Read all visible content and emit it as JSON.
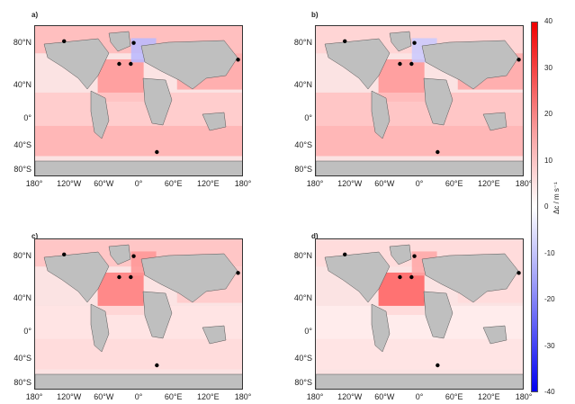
{
  "chart_data": {
    "type": "heatmap",
    "panels": [
      {
        "label": "a)",
        "zones": [
          {
            "region": "arctic",
            "value": 8
          },
          {
            "region": "north-atlantic",
            "value": 12
          },
          {
            "region": "north-pacific",
            "value": 10
          },
          {
            "region": "tropics",
            "value": 6
          },
          {
            "region": "southern-ocean",
            "value": 9
          },
          {
            "region": "nordic-seas",
            "value": -8
          }
        ]
      },
      {
        "label": "b)",
        "zones": [
          {
            "region": "arctic",
            "value": 5
          },
          {
            "region": "north-atlantic",
            "value": 12
          },
          {
            "region": "north-pacific",
            "value": 10
          },
          {
            "region": "tropics",
            "value": 7
          },
          {
            "region": "southern-ocean",
            "value": 9
          },
          {
            "region": "nordic-seas",
            "value": -6
          }
        ]
      },
      {
        "label": "c)",
        "zones": [
          {
            "region": "arctic",
            "value": 7
          },
          {
            "region": "north-atlantic",
            "value": 15
          },
          {
            "region": "north-pacific",
            "value": 6
          },
          {
            "region": "tropics",
            "value": 3
          },
          {
            "region": "southern-ocean",
            "value": 4
          },
          {
            "region": "nordic-seas",
            "value": 12
          }
        ]
      },
      {
        "label": "d)",
        "zones": [
          {
            "region": "arctic",
            "value": 4
          },
          {
            "region": "north-atlantic",
            "value": 18
          },
          {
            "region": "north-pacific",
            "value": 4
          },
          {
            "region": "tropics",
            "value": 2
          },
          {
            "region": "southern-ocean",
            "value": 3
          },
          {
            "region": "nordic-seas",
            "value": 10
          }
        ]
      }
    ],
    "stations": [
      {
        "lon": -130,
        "lat": 72
      },
      {
        "lon": -10,
        "lat": 70
      },
      {
        "lon": -35,
        "lat": 45
      },
      {
        "lon": -15,
        "lat": 45
      },
      {
        "lon": 170,
        "lat": 50
      },
      {
        "lon": 30,
        "lat": -60
      }
    ],
    "lat_ticks": [
      "80°N",
      "40°N",
      "0°",
      "40°S",
      "80°S"
    ],
    "lon_ticks": [
      "180°",
      "120°W",
      "60°W",
      "0°",
      "60°E",
      "120°E",
      "180°"
    ],
    "colorbar": {
      "label": "Δc / m s⁻¹",
      "range": [
        -40,
        40
      ],
      "ticks": [
        "40",
        "30",
        "20",
        "10",
        "0",
        "-10",
        "-20",
        "-30",
        "-40"
      ]
    }
  }
}
